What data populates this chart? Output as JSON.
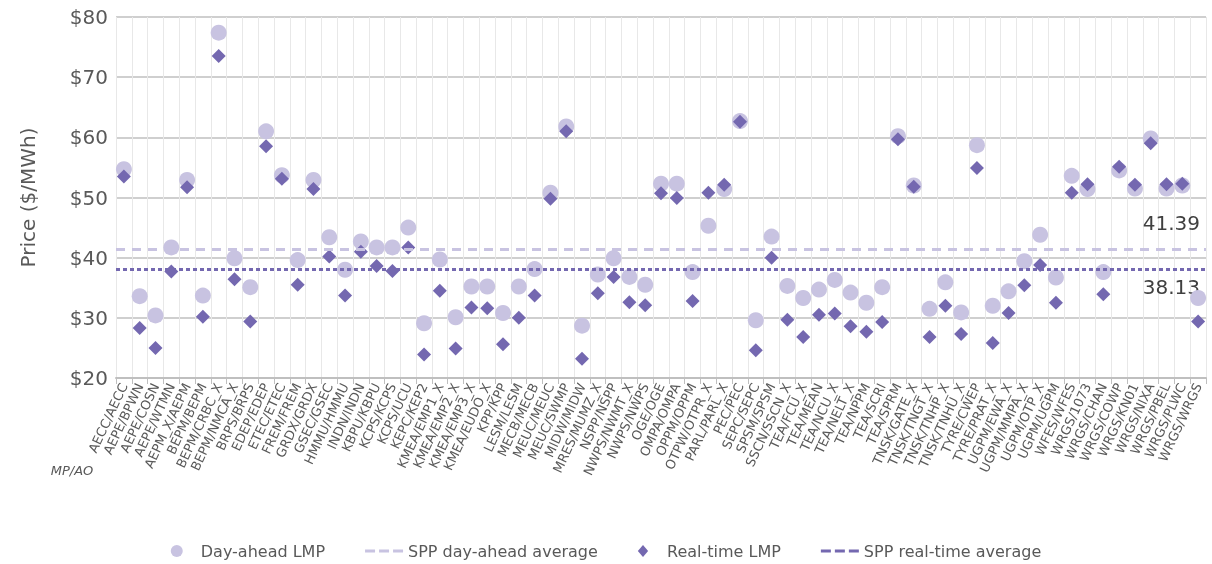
{
  "chart_data": {
    "type": "scatter",
    "xlabel": "MP/AO",
    "ylabel": "Price ($/MWh)",
    "categories": [
      "AECC/AECC",
      "AEPE/BPWN",
      "AEPE/COSN",
      "AEPE/WTMN",
      "AEPM_X/AEPM",
      "BEPM/BEPM",
      "BEPM/CRBC_X",
      "BEPM/NMCA_X",
      "BRPS/BRPS",
      "EDEP/EDEP",
      "ETEC/ETEC",
      "FREM/FREM",
      "GRDX/GRDX",
      "GSEC/GSEC",
      "HMMU/HMMU",
      "INDN/INDN",
      "KBPU/KBPU",
      "KCPS/KCPS",
      "KCPS/UCU",
      "KEPC/KEP2",
      "KMEA/EMP1_X",
      "KMEA/EMP2_X",
      "KMEA/EMP3_X",
      "KMEA/EUDO_X",
      "KPP/KPP",
      "LESM/LESM",
      "MECB/MECB",
      "MEUC/MEUC",
      "MEUC/SWMP",
      "MIDW/MIDW",
      "MRES/MUMZ_X",
      "NSPP/NSPP",
      "NWPS/NWMT_X",
      "NWPS/NWPS",
      "OGE/OGE",
      "OMPA/OMPA",
      "OPPM/OPPM",
      "OTPW/OTPR_X",
      "PARL/PARL_X",
      "PEC/PEC",
      "SEPC/SEPC",
      "SPSM/SPSM",
      "SSCN/SSCN_X",
      "TEA/FCU_X",
      "TEA/MEAN",
      "TEA/NCU_X",
      "TEA/NELT_X",
      "TEA/NPPM",
      "TEA/SCRI",
      "TEA/SPRM",
      "TNSK/GATE_X",
      "TNSK/TNGT_X",
      "TNSK/TNHP_X",
      "TNSK/TNHU_X",
      "TYRE/CWEP",
      "TYRE/PRAT_X",
      "UGPM/EWA_X",
      "UGPM/MMPA_X",
      "UGPM/OTP_X",
      "UGPM/UGPM",
      "WFES/WFES",
      "WRGS/1073",
      "WRGS/CHAN",
      "WRGS/COWP",
      "WRGS/KN01",
      "WRGS/NIXA",
      "WRGS/PBEL",
      "WRGS/PLWC",
      "WRGS/WRGS"
    ],
    "series": [
      {
        "name": "Day-ahead LMP",
        "color": "#c8c3e1",
        "marker": "circle",
        "values": [
          54.7,
          33.6,
          30.4,
          41.7,
          52.9,
          33.7,
          77.4,
          39.9,
          35.1,
          61.0,
          53.7,
          39.6,
          52.9,
          43.4,
          38.0,
          42.7,
          41.7,
          41.7,
          45.0,
          29.1,
          39.7,
          30.1,
          35.2,
          35.2,
          30.8,
          35.2,
          38.1,
          50.8,
          61.8,
          28.7,
          37.2,
          39.9,
          36.8,
          35.5,
          52.3,
          52.3,
          37.6,
          45.3,
          51.4,
          62.7,
          29.6,
          43.5,
          35.3,
          33.3,
          34.7,
          36.3,
          34.2,
          32.5,
          35.1,
          60.2,
          52.0,
          31.5,
          35.9,
          30.9,
          58.7,
          32.0,
          34.4,
          39.4,
          43.8,
          36.7,
          53.6,
          51.4,
          37.6,
          54.5,
          51.5,
          59.8,
          51.5,
          52.0,
          33.3
        ]
      },
      {
        "name": "Real-time LMP",
        "color": "#7468b0",
        "marker": "diamond",
        "values": [
          53.5,
          28.3,
          25.0,
          37.7,
          51.7,
          30.2,
          73.5,
          36.4,
          29.4,
          58.5,
          53.1,
          35.5,
          51.4,
          40.2,
          33.7,
          41.0,
          38.6,
          37.8,
          41.7,
          23.9,
          34.5,
          24.9,
          31.7,
          31.6,
          25.6,
          30.0,
          33.7,
          49.8,
          61.0,
          23.2,
          34.1,
          36.8,
          32.6,
          32.1,
          50.7,
          49.9,
          32.8,
          50.8,
          52.1,
          62.6,
          24.6,
          40.0,
          29.7,
          26.8,
          30.5,
          30.7,
          28.6,
          27.7,
          29.3,
          59.7,
          51.8,
          26.8,
          32.0,
          27.3,
          54.9,
          25.8,
          30.8,
          35.4,
          38.8,
          32.5,
          50.8,
          52.2,
          33.9,
          55.1,
          52.1,
          59.0,
          52.2,
          52.3,
          29.4
        ]
      }
    ],
    "ref_lines": [
      {
        "axis": "y",
        "value": 41.39,
        "label": "SPP day-ahead average",
        "color": "#c8c3e1",
        "line_style": "dashed"
      },
      {
        "axis": "y",
        "value": 38.13,
        "label": "SPP real-time average",
        "color": "#7468b0",
        "line_style": "dotted"
      }
    ],
    "ylim": [
      20,
      80
    ],
    "yticks": [
      {
        "value": 20,
        "label": "$20"
      },
      {
        "value": 30,
        "label": "$30"
      },
      {
        "value": 40,
        "label": "$40"
      },
      {
        "value": 50,
        "label": "$50"
      },
      {
        "value": 60,
        "label": "$60"
      },
      {
        "value": 70,
        "label": "$70"
      },
      {
        "value": 80,
        "label": "$80"
      }
    ],
    "annotations": [
      {
        "text": "41.39",
        "y": 41.39
      },
      {
        "text": "38.13",
        "y": 38.13
      }
    ],
    "grid": true,
    "legend": "bottom"
  }
}
